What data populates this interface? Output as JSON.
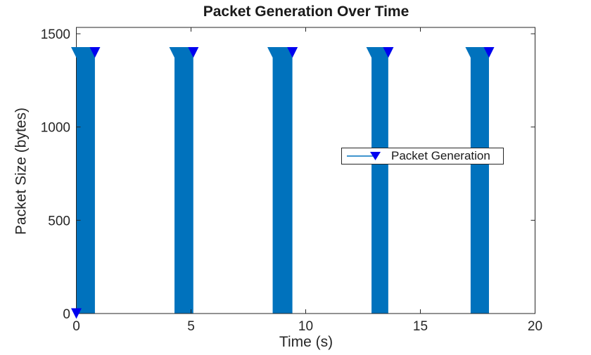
{
  "chart_data": {
    "type": "stem",
    "title": "Packet Generation Over Time",
    "xlabel": "Time (s)",
    "ylabel": "Packet Size (bytes)",
    "xlim": [
      0,
      20
    ],
    "ylim": [
      0,
      1534
    ],
    "xticks": [
      0,
      5,
      10,
      15,
      20
    ],
    "yticks": [
      0,
      500,
      1000,
      1500
    ],
    "grid": false,
    "marker": "triangle-down",
    "series_color": "#0072BD",
    "marker_color": "#0000F0",
    "axis_color": "#262626",
    "packet_size_bytes": 1400,
    "origin_point": {
      "t": 0,
      "size": 0
    },
    "bursts": [
      {
        "start": 0.0,
        "end": 0.81
      },
      {
        "start": 4.28,
        "end": 5.1
      },
      {
        "start": 8.56,
        "end": 9.42
      },
      {
        "start": 12.87,
        "end": 13.6
      },
      {
        "start": 17.19,
        "end": 17.99
      }
    ],
    "legend": {
      "label": "Packet Generation"
    }
  }
}
